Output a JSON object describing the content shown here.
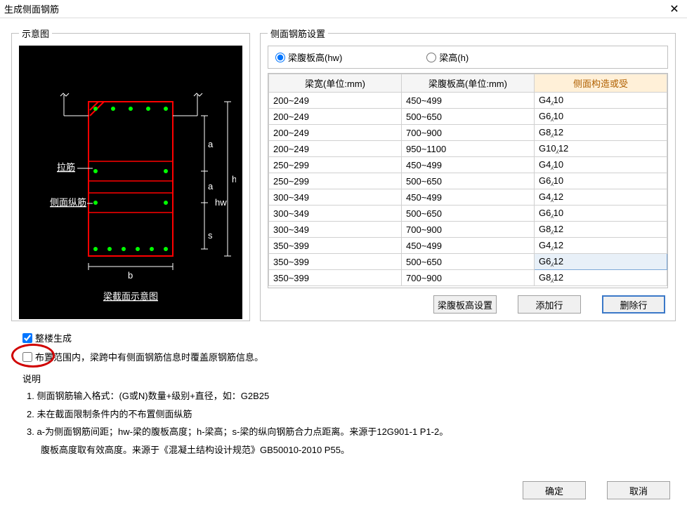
{
  "window": {
    "title": "生成侧面钢筋"
  },
  "diagram": {
    "legend": "示意图",
    "caption": "梁截面示意图",
    "labels": {
      "tie": "拉筋",
      "side": "侧面纵筋",
      "width": "b",
      "height": "h",
      "hw": "hw",
      "a": "a",
      "s": "s"
    },
    "colors": {
      "bg": "#000000",
      "beam": "#ff0000",
      "dots": "#00ff00",
      "text": "#ffffff"
    }
  },
  "settings": {
    "legend": "侧面钢筋设置",
    "radio_hw": "梁腹板高(hw)",
    "radio_h": "梁高(h)",
    "radio_selected": "hw",
    "columns": {
      "c1": "梁宽(单位:mm)",
      "c2": "梁腹板高(单位:mm)",
      "c3": "侧面构造或受"
    },
    "rows": [
      {
        "w": "200~249",
        "h": "450~499",
        "r": "G4⁁10"
      },
      {
        "w": "200~249",
        "h": "500~650",
        "r": "G6⁁10"
      },
      {
        "w": "200~249",
        "h": "700~900",
        "r": "G8⁁12"
      },
      {
        "w": "200~249",
        "h": "950~1100",
        "r": "G10⁁12"
      },
      {
        "w": "250~299",
        "h": "450~499",
        "r": "G4⁁10"
      },
      {
        "w": "250~299",
        "h": "500~650",
        "r": "G6⁁10"
      },
      {
        "w": "300~349",
        "h": "450~499",
        "r": "G4⁁12"
      },
      {
        "w": "300~349",
        "h": "500~650",
        "r": "G6⁁10"
      },
      {
        "w": "300~349",
        "h": "700~900",
        "r": "G8⁁12"
      },
      {
        "w": "350~399",
        "h": "450~499",
        "r": "G4⁁12"
      },
      {
        "w": "350~399",
        "h": "500~650",
        "r": "G6⁁12",
        "sel": true
      },
      {
        "w": "350~399",
        "h": "700~900",
        "r": "G8⁁12"
      }
    ],
    "buttons": {
      "hw_set": "梁腹板高设置",
      "add": "添加行",
      "del": "删除行"
    }
  },
  "checks": {
    "whole": "整楼生成",
    "whole_checked": true,
    "overwrite": "布置范围内，梁跨中有侧面钢筋信息时覆盖原钢筋信息。",
    "overwrite_checked": false
  },
  "desc": {
    "heading": "说明",
    "l1": "1. 侧面钢筋输入格式：(G或N)数量+级别+直径，如：G2B25",
    "l2": "2. 未在截面限制条件内的不布置侧面纵筋",
    "l3": "3. a-为侧面钢筋间距；hw-梁的腹板高度；h-梁高；s-梁的纵向钢筋合力点距离。来源于12G901-1 P1-2。",
    "l3b": "腹板高度取有效高度。来源于《混凝土结构设计规范》GB50010-2010 P55。"
  },
  "footer": {
    "ok": "确定",
    "cancel": "取消"
  }
}
